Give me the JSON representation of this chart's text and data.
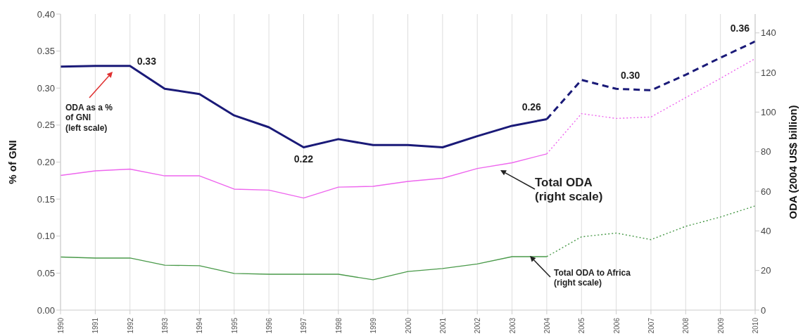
{
  "chart_data": {
    "type": "line",
    "ylabel": "% of GNI",
    "y2label": "ODA (2004 US$ billion)",
    "categories": [
      "1990",
      "1991",
      "1992",
      "1993",
      "1994",
      "1995",
      "1996",
      "1997",
      "1998",
      "1999",
      "2000",
      "2001",
      "2002",
      "2003",
      "2004",
      "2005",
      "2006",
      "2007",
      "2008",
      "2009",
      "2010"
    ],
    "series": [
      {
        "color": "#1a1a78",
        "axis": "y",
        "line_style": "solid",
        "values": [
          0.329,
          0.33,
          0.33,
          0.299,
          0.292,
          0.263,
          0.247,
          0.22,
          0.231,
          0.223,
          0.223,
          0.22,
          0.235,
          0.249,
          0.258,
          null,
          null,
          null,
          null,
          null,
          null
        ],
        "value_labels": [
          null,
          null,
          "0.33",
          null,
          null,
          null,
          null,
          "0.22",
          null,
          null,
          null,
          null,
          null,
          null,
          "0.26",
          null,
          null,
          null,
          null,
          null,
          null
        ]
      },
      {
        "color": "#1a1a78",
        "axis": "y",
        "line_style": "dashed",
        "values": [
          null,
          null,
          null,
          null,
          null,
          null,
          null,
          null,
          null,
          null,
          null,
          null,
          null,
          null,
          0.258,
          0.311,
          0.299,
          0.297,
          0.318,
          0.341,
          0.363
        ],
        "value_labels": [
          null,
          null,
          null,
          null,
          null,
          null,
          null,
          null,
          null,
          null,
          null,
          null,
          null,
          null,
          null,
          null,
          "0.30",
          null,
          null,
          null,
          "0.36"
        ]
      },
      {
        "color": "#ee66ee",
        "axis": "y2",
        "line_style": "solid",
        "values": [
          68,
          70.3,
          71.2,
          67.8,
          67.8,
          61.1,
          60.6,
          56.6,
          62.1,
          62.5,
          65,
          66.6,
          71.5,
          74.4,
          78.9,
          null,
          null,
          null,
          null,
          null,
          null
        ]
      },
      {
        "color": "#ee66ee",
        "axis": "y2",
        "line_style": "dotted",
        "values": [
          null,
          null,
          null,
          null,
          null,
          null,
          null,
          null,
          null,
          null,
          null,
          null,
          null,
          null,
          78.9,
          99.2,
          96.8,
          97.5,
          107.3,
          117,
          127
        ]
      },
      {
        "color": "#4a9a4a",
        "axis": "y2",
        "line_style": "solid",
        "values": [
          26.8,
          26.3,
          26.3,
          22.7,
          22.4,
          18.5,
          18.1,
          18.1,
          18.1,
          15.3,
          19.5,
          21,
          23.3,
          27,
          27,
          null,
          null,
          null,
          null,
          null,
          null
        ]
      },
      {
        "color": "#4a9a4a",
        "axis": "y2",
        "line_style": "dotted",
        "values": [
          null,
          null,
          null,
          null,
          null,
          null,
          null,
          null,
          null,
          null,
          null,
          null,
          null,
          null,
          27,
          37,
          38.9,
          35.6,
          42.3,
          47,
          52.6
        ]
      }
    ],
    "ylim": [
      0,
      0.4
    ],
    "yticks": [
      {
        "value": 0,
        "label": "0.00"
      },
      {
        "value": 0.05,
        "label": "0.05"
      },
      {
        "value": 0.1,
        "label": "0.10"
      },
      {
        "value": 0.15,
        "label": "0.15"
      },
      {
        "value": 0.2,
        "label": "0.20"
      },
      {
        "value": 0.25,
        "label": "0.25"
      },
      {
        "value": 0.3,
        "label": "0.30"
      },
      {
        "value": 0.35,
        "label": "0.35"
      },
      {
        "value": 0.4,
        "label": "0.40"
      }
    ],
    "y2lim": [
      0,
      149.5
    ],
    "y2ticks": [
      0,
      20,
      40,
      60,
      80,
      100,
      120,
      140
    ],
    "grid": "x",
    "marker": "none",
    "legend": false,
    "annotations": [
      "ODA as a %\nof GNI\n(left scale)",
      "Total ODA\n(right scale)",
      "Total ODA to Africa\n(right scale)"
    ]
  }
}
